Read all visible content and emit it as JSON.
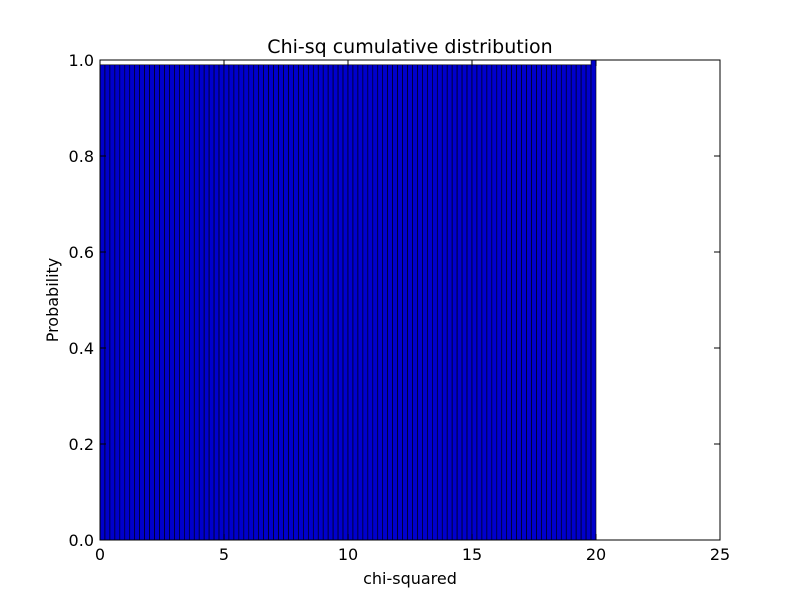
{
  "chart_data": {
    "type": "bar",
    "title": "Chi-sq cumulative distribution",
    "xlabel": "chi-squared",
    "ylabel": "Probability",
    "xlim": [
      0,
      25
    ],
    "ylim": [
      0,
      1.0
    ],
    "xticks": [
      0,
      5,
      10,
      15,
      20,
      25
    ],
    "xtick_labels": [
      "0",
      "5",
      "10",
      "15",
      "20",
      "25"
    ],
    "yticks": [
      0.0,
      0.2,
      0.4,
      0.6,
      0.8,
      1.0
    ],
    "ytick_labels": [
      "0.0",
      "0.2",
      "0.4",
      "0.6",
      "0.8",
      "1.0"
    ],
    "grid": false,
    "bar_color": "#0000cc",
    "edge_color": "#000000",
    "series": [
      {
        "x_start": 0,
        "bin_width": 0.2,
        "values": [
          0.99,
          0.99,
          0.99,
          0.99,
          0.99,
          0.99,
          0.99,
          0.99,
          0.99,
          0.99,
          0.99,
          0.99,
          0.99,
          0.99,
          0.99,
          0.99,
          0.99,
          0.99,
          0.99,
          0.99,
          0.99,
          0.99,
          0.99,
          0.99,
          0.99,
          0.99,
          0.99,
          0.99,
          0.99,
          0.99,
          0.99,
          0.99,
          0.99,
          0.99,
          0.99,
          0.99,
          0.99,
          0.99,
          0.99,
          0.99,
          0.99,
          0.99,
          0.99,
          0.99,
          0.99,
          0.99,
          0.99,
          0.99,
          0.99,
          0.99,
          0.99,
          0.99,
          0.99,
          0.99,
          0.99,
          0.99,
          0.99,
          0.99,
          0.99,
          0.99,
          0.99,
          0.99,
          0.99,
          0.99,
          0.99,
          0.99,
          0.99,
          0.99,
          0.99,
          0.99,
          0.99,
          0.99,
          0.99,
          0.99,
          0.99,
          0.99,
          0.99,
          0.99,
          0.99,
          0.99,
          0.99,
          0.99,
          0.99,
          0.99,
          0.99,
          0.99,
          0.99,
          0.99,
          0.99,
          0.99,
          0.99,
          0.99,
          0.99,
          0.99,
          0.99,
          0.99,
          0.99,
          0.99,
          0.99,
          1.0
        ]
      }
    ]
  }
}
